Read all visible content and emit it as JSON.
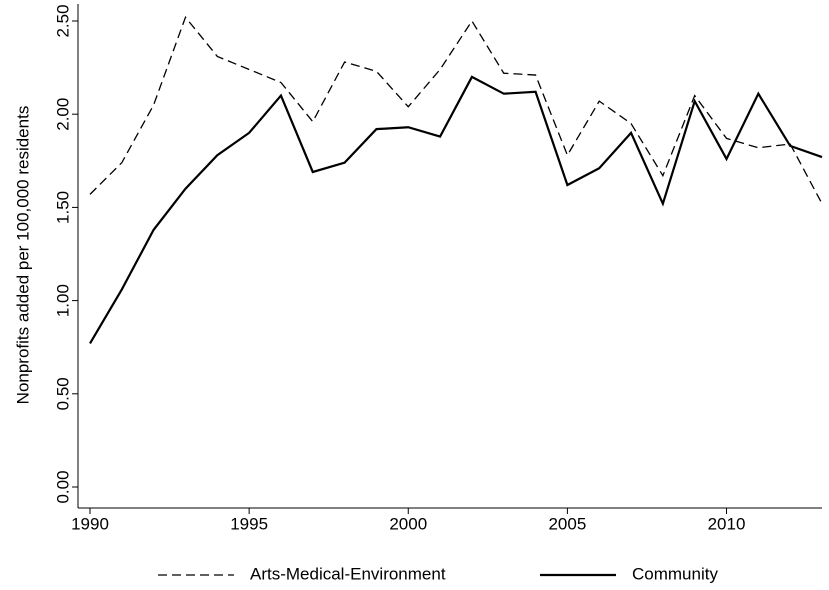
{
  "chart_data": {
    "type": "line",
    "y_label": "Nonprofits added per 100,000 residents",
    "x": [
      1990,
      1991,
      1992,
      1993,
      1994,
      1995,
      1996,
      1997,
      1998,
      1999,
      2000,
      2001,
      2002,
      2003,
      2004,
      2005,
      2006,
      2007,
      2008,
      2009,
      2010,
      2011,
      2012,
      2013
    ],
    "series": [
      {
        "name": "Arts-Medical-Environment",
        "color": "#000000",
        "dash": "dashed",
        "values": [
          1.57,
          1.74,
          2.05,
          2.52,
          2.31,
          2.24,
          2.17,
          1.96,
          2.28,
          2.23,
          2.04,
          2.24,
          2.5,
          2.22,
          2.21,
          1.78,
          2.07,
          1.95,
          1.67,
          2.1,
          1.87,
          1.82,
          1.84,
          1.52
        ]
      },
      {
        "name": "Community",
        "color": "#000000",
        "dash": "solid",
        "values": [
          0.77,
          1.06,
          1.38,
          1.6,
          1.78,
          1.9,
          2.1,
          1.69,
          1.74,
          1.92,
          1.93,
          1.88,
          2.2,
          2.11,
          2.12,
          1.62,
          1.71,
          1.9,
          1.52,
          2.07,
          1.76,
          2.11,
          1.83,
          1.77
        ]
      }
    ],
    "xlim": [
      1990,
      2013
    ],
    "xticks": [
      1990,
      1995,
      2000,
      2005,
      2010
    ],
    "ylim": [
      0,
      2.5
    ],
    "yticks": [
      {
        "value": 0,
        "label": "0.00"
      },
      {
        "value": 0.5,
        "label": "0.50"
      },
      {
        "value": 1,
        "label": "1.00"
      },
      {
        "value": 1.5,
        "label": "1.50"
      },
      {
        "value": 2,
        "label": "2.00"
      },
      {
        "value": 2.5,
        "label": "2.50"
      }
    ],
    "grid": false,
    "legend": "bottom"
  }
}
